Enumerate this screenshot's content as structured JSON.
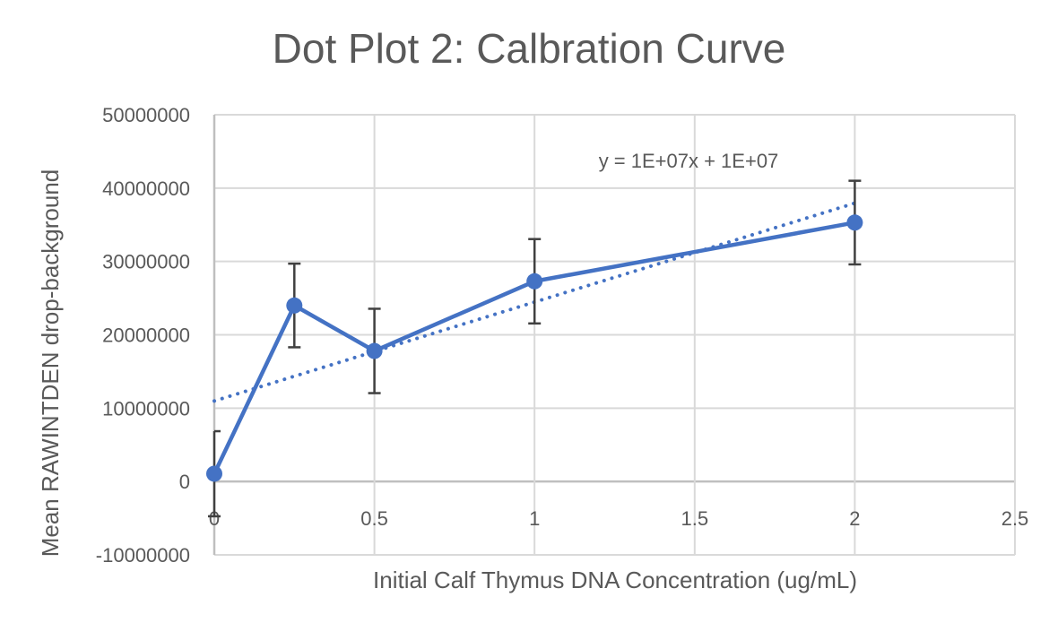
{
  "chart_data": {
    "type": "line",
    "title": "Dot Plot 2: Calbration Curve",
    "xlabel": "Initial Calf Thymus DNA Concentration (ug/mL)",
    "ylabel": "Mean  RAWINTDEN drop-background",
    "xlim": [
      0,
      2.5
    ],
    "ylim": [
      -10000000,
      50000000
    ],
    "x_ticks": [
      "0",
      "0.5",
      "1",
      "1.5",
      "2",
      "2.5"
    ],
    "y_ticks": [
      "50000000",
      "40000000",
      "30000000",
      "20000000",
      "10000000",
      "0",
      "-10000000"
    ],
    "grid": true,
    "series": [
      {
        "x": [
          0,
          0.25,
          0.5,
          1,
          2
        ],
        "y": [
          1060000,
          24000000,
          17800000,
          27300000,
          35300000
        ],
        "error": [
          5800000,
          5700000,
          5750000,
          5750000,
          5700000
        ],
        "color": "#4472c4",
        "marker": "circle"
      }
    ],
    "trendline": {
      "type": "linear",
      "style": "dotted",
      "color": "#4472c4",
      "equation": "y = 1E+07x + 1E+07"
    }
  }
}
